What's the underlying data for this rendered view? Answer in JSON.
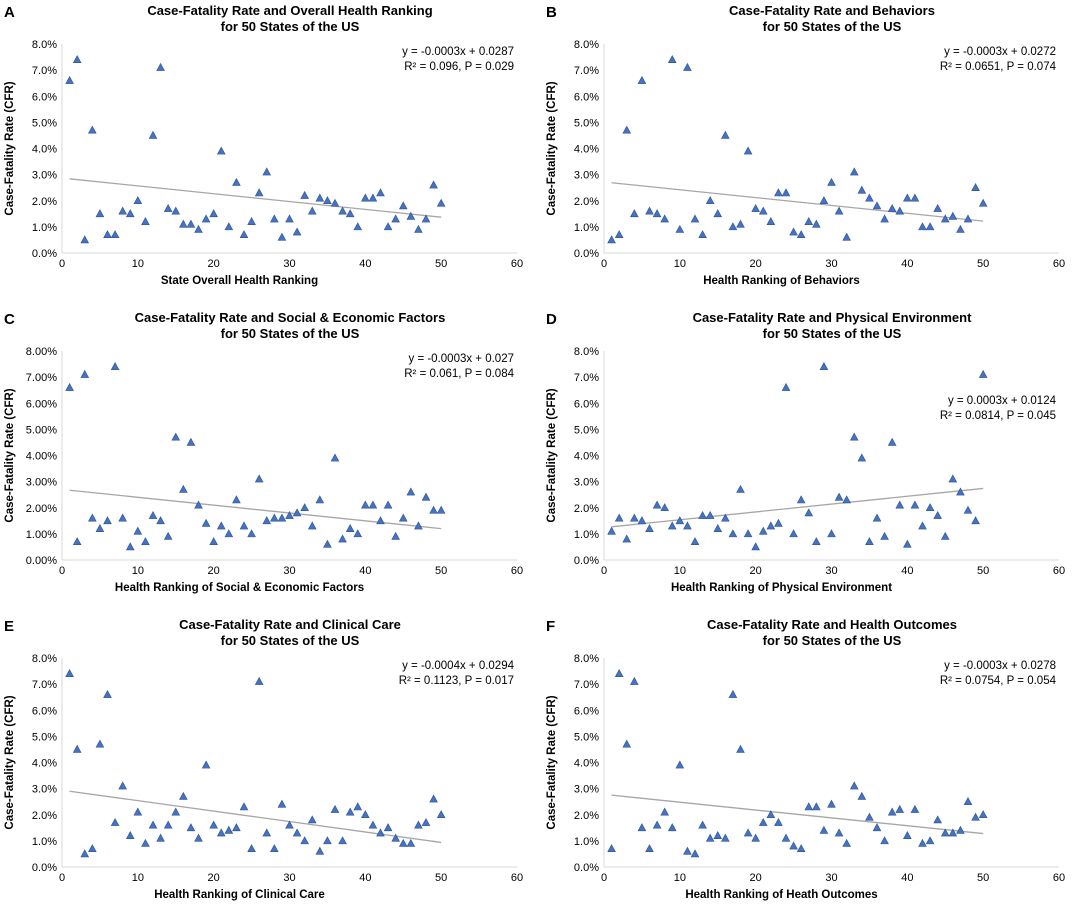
{
  "colors": {
    "marker": "#4472C4",
    "marker_edge": "#2F528F",
    "trendline": "#A6A6A6",
    "axis": "#D9D9D9",
    "text": "#000000"
  },
  "chart_data": [
    {
      "panel_letter": "A",
      "type": "scatter",
      "title": "Case-Fatality Rate and Overall Health Ranking",
      "subtitle": "for 50 States of the US",
      "xlabel": "State Overall Health Ranking",
      "ylabel": "Case-Fatality Rate (CFR)",
      "xlim": [
        0,
        60
      ],
      "xticks": [
        0,
        10,
        20,
        30,
        40,
        50,
        60
      ],
      "ylim": [
        0,
        0.08
      ],
      "ytick_labels": [
        "0.0%",
        "1.0%",
        "2.0%",
        "3.0%",
        "4.0%",
        "5.0%",
        "6.0%",
        "7.0%",
        "8.0%"
      ],
      "equation": "y = -0.0003x + 0.0287",
      "stats": "R² = 0.096, P = 0.029",
      "trendline": {
        "slope": -0.0003,
        "intercept": 0.0287,
        "x_range": [
          1,
          50
        ]
      },
      "x": [
        1,
        2,
        3,
        4,
        5,
        6,
        7,
        8,
        9,
        10,
        11,
        12,
        13,
        14,
        15,
        16,
        17,
        18,
        19,
        20,
        21,
        22,
        23,
        24,
        25,
        26,
        27,
        28,
        29,
        30,
        31,
        32,
        33,
        34,
        35,
        36,
        37,
        38,
        39,
        40,
        41,
        42,
        43,
        44,
        45,
        46,
        47,
        48,
        49,
        50
      ],
      "y": [
        0.066,
        0.074,
        0.005,
        0.047,
        0.015,
        0.007,
        0.007,
        0.016,
        0.015,
        0.02,
        0.012,
        0.045,
        0.071,
        0.017,
        0.016,
        0.011,
        0.011,
        0.009,
        0.013,
        0.015,
        0.039,
        0.01,
        0.027,
        0.007,
        0.012,
        0.023,
        0.031,
        0.013,
        0.006,
        0.013,
        0.008,
        0.022,
        0.016,
        0.021,
        0.02,
        0.019,
        0.016,
        0.015,
        0.01,
        0.021,
        0.021,
        0.023,
        0.01,
        0.013,
        0.018,
        0.014,
        0.009,
        0.013,
        0.026,
        0.019
      ]
    },
    {
      "panel_letter": "B",
      "type": "scatter",
      "title": "Case-Fatality Rate and Behaviors",
      "subtitle": "for 50 States of the US",
      "xlabel": "Health Ranking of Behaviors",
      "ylabel": "Case-Fatality Rate (CFR)",
      "xlim": [
        0,
        60
      ],
      "xticks": [
        0,
        10,
        20,
        30,
        40,
        50,
        60
      ],
      "ylim": [
        0,
        0.08
      ],
      "ytick_labels": [
        "0.0%",
        "1.0%",
        "2.0%",
        "3.0%",
        "4.0%",
        "5.0%",
        "6.0%",
        "7.0%",
        "8.0%"
      ],
      "equation": "y = -0.0003x + 0.0272",
      "stats": "R² = 0.0651, P = 0.074",
      "trendline": {
        "slope": -0.0003,
        "intercept": 0.0272,
        "x_range": [
          1,
          50
        ]
      },
      "x": [
        1,
        2,
        3,
        4,
        5,
        6,
        7,
        8,
        9,
        10,
        11,
        12,
        13,
        14,
        15,
        16,
        17,
        18,
        19,
        20,
        21,
        22,
        23,
        24,
        25,
        26,
        27,
        28,
        29,
        30,
        31,
        32,
        33,
        34,
        35,
        36,
        37,
        38,
        39,
        40,
        41,
        42,
        43,
        44,
        45,
        46,
        47,
        48,
        49,
        50
      ],
      "y": [
        0.005,
        0.007,
        0.047,
        0.015,
        0.066,
        0.016,
        0.015,
        0.013,
        0.074,
        0.009,
        0.071,
        0.013,
        0.007,
        0.02,
        0.015,
        0.045,
        0.01,
        0.011,
        0.039,
        0.017,
        0.016,
        0.012,
        0.023,
        0.023,
        0.008,
        0.007,
        0.012,
        0.011,
        0.02,
        0.027,
        0.016,
        0.006,
        0.031,
        0.024,
        0.021,
        0.018,
        0.013,
        0.017,
        0.016,
        0.021,
        0.021,
        0.01,
        0.01,
        0.017,
        0.013,
        0.014,
        0.009,
        0.013,
        0.025,
        0.019
      ]
    },
    {
      "panel_letter": "C",
      "type": "scatter",
      "title": "Case-Fatality Rate and Social & Economic Factors",
      "subtitle": "for 50 States of the US",
      "xlabel": "Health Ranking of Social & Economic Factors",
      "ylabel": "Case-Fatality Rate (CFR)",
      "xlim": [
        0,
        60
      ],
      "xticks": [
        0,
        10,
        20,
        30,
        40,
        50,
        60
      ],
      "ylim": [
        0,
        0.08
      ],
      "ytick_labels": [
        "0.00%",
        "1.00%",
        "2.00%",
        "3.00%",
        "4.00%",
        "5.00%",
        "6.00%",
        "7.00%",
        "8.00%"
      ],
      "equation": "y = -0.0003x + 0.027",
      "stats": "R² = 0.061, P = 0.084",
      "trendline": {
        "slope": -0.0003,
        "intercept": 0.027,
        "x_range": [
          1,
          50
        ]
      },
      "x": [
        1,
        2,
        3,
        4,
        5,
        6,
        7,
        8,
        9,
        10,
        11,
        12,
        13,
        14,
        15,
        16,
        17,
        18,
        19,
        20,
        21,
        22,
        23,
        24,
        25,
        26,
        27,
        28,
        29,
        30,
        31,
        32,
        33,
        34,
        35,
        36,
        37,
        38,
        39,
        40,
        41,
        42,
        43,
        44,
        45,
        46,
        47,
        48,
        49,
        50
      ],
      "y": [
        0.066,
        0.007,
        0.071,
        0.016,
        0.012,
        0.015,
        0.074,
        0.016,
        0.005,
        0.011,
        0.007,
        0.017,
        0.015,
        0.009,
        0.047,
        0.027,
        0.045,
        0.021,
        0.014,
        0.007,
        0.013,
        0.01,
        0.023,
        0.013,
        0.01,
        0.031,
        0.015,
        0.016,
        0.016,
        0.017,
        0.018,
        0.02,
        0.013,
        0.023,
        0.006,
        0.039,
        0.008,
        0.012,
        0.01,
        0.021,
        0.021,
        0.015,
        0.021,
        0.009,
        0.016,
        0.026,
        0.013,
        0.024,
        0.019,
        0.019
      ]
    },
    {
      "panel_letter": "D",
      "type": "scatter",
      "title": "Case-Fatality Rate and Physical Environment",
      "subtitle": "for 50 States of the US",
      "xlabel": "Health Ranking of Physical Environment",
      "ylabel": "Case-Fatality Rate (CFR)",
      "xlim": [
        0,
        60
      ],
      "xticks": [
        0,
        10,
        20,
        30,
        40,
        50,
        60
      ],
      "ylim": [
        0,
        0.08
      ],
      "ytick_labels": [
        "0.0%",
        "1.0%",
        "2.0%",
        "3.0%",
        "4.0%",
        "5.0%",
        "6.0%",
        "7.0%",
        "8.0%"
      ],
      "equation": "y = 0.0003x + 0.0124",
      "stats": "R² = 0.0814, P = 0.045",
      "trendline": {
        "slope": 0.0003,
        "intercept": 0.0124,
        "x_range": [
          1,
          50
        ]
      },
      "x": [
        1,
        2,
        3,
        4,
        5,
        6,
        7,
        8,
        9,
        10,
        11,
        12,
        13,
        14,
        15,
        16,
        17,
        18,
        19,
        20,
        21,
        22,
        23,
        24,
        25,
        26,
        27,
        28,
        29,
        30,
        31,
        32,
        33,
        34,
        35,
        36,
        37,
        38,
        39,
        40,
        41,
        42,
        43,
        44,
        45,
        46,
        47,
        48,
        49,
        50
      ],
      "y": [
        0.011,
        0.016,
        0.008,
        0.016,
        0.015,
        0.012,
        0.021,
        0.02,
        0.013,
        0.015,
        0.013,
        0.007,
        0.017,
        0.017,
        0.012,
        0.016,
        0.01,
        0.027,
        0.01,
        0.005,
        0.011,
        0.013,
        0.014,
        0.066,
        0.01,
        0.023,
        0.018,
        0.007,
        0.074,
        0.01,
        0.024,
        0.023,
        0.047,
        0.039,
        0.007,
        0.016,
        0.009,
        0.045,
        0.021,
        0.006,
        0.021,
        0.013,
        0.02,
        0.017,
        0.009,
        0.031,
        0.026,
        0.019,
        0.015,
        0.071
      ]
    },
    {
      "panel_letter": "E",
      "type": "scatter",
      "title": "Case-Fatality Rate and Clinical Care",
      "subtitle": "for 50 States of the US",
      "xlabel": "Health Ranking of Clinical Care",
      "ylabel": "Case-Fatality Rate (CFR)",
      "xlim": [
        0,
        60
      ],
      "xticks": [
        0,
        10,
        20,
        30,
        40,
        50,
        60
      ],
      "ylim": [
        0,
        0.08
      ],
      "ytick_labels": [
        "0.0%",
        "1.0%",
        "2.0%",
        "3.0%",
        "4.0%",
        "5.0%",
        "6.0%",
        "7.0%",
        "8.0%"
      ],
      "equation": "y = -0.0004x + 0.0294",
      "stats": "R² = 0.1123, P = 0.017",
      "trendline": {
        "slope": -0.0004,
        "intercept": 0.0294,
        "x_range": [
          1,
          50
        ]
      },
      "x": [
        1,
        2,
        3,
        4,
        5,
        6,
        7,
        8,
        9,
        10,
        11,
        12,
        13,
        14,
        15,
        16,
        17,
        18,
        19,
        20,
        21,
        22,
        23,
        24,
        25,
        26,
        27,
        28,
        29,
        30,
        31,
        32,
        33,
        34,
        35,
        36,
        37,
        38,
        39,
        40,
        41,
        42,
        43,
        44,
        45,
        46,
        47,
        48,
        49,
        50
      ],
      "y": [
        0.074,
        0.045,
        0.005,
        0.007,
        0.047,
        0.066,
        0.017,
        0.031,
        0.012,
        0.021,
        0.009,
        0.016,
        0.011,
        0.016,
        0.021,
        0.027,
        0.015,
        0.011,
        0.039,
        0.016,
        0.013,
        0.014,
        0.015,
        0.023,
        0.007,
        0.071,
        0.013,
        0.007,
        0.024,
        0.016,
        0.013,
        0.01,
        0.018,
        0.006,
        0.01,
        0.022,
        0.01,
        0.021,
        0.023,
        0.02,
        0.016,
        0.013,
        0.015,
        0.011,
        0.009,
        0.009,
        0.016,
        0.017,
        0.026,
        0.02
      ]
    },
    {
      "panel_letter": "F",
      "type": "scatter",
      "title": "Case-Fatality Rate and Health Outcomes",
      "subtitle": "for 50 States of the US",
      "xlabel": "Health Ranking of Heath Outcomes",
      "ylabel": "Case-Fatality Rate (CFR)",
      "xlim": [
        0,
        60
      ],
      "xticks": [
        0,
        10,
        20,
        30,
        40,
        50,
        60
      ],
      "ylim": [
        0,
        0.08
      ],
      "ytick_labels": [
        "0.0%",
        "1.0%",
        "2.0%",
        "3.0%",
        "4.0%",
        "5.0%",
        "6.0%",
        "7.0%",
        "8.0%"
      ],
      "equation": "y = -0.0003x + 0.0278",
      "stats": "R² = 0.0754, P = 0.054",
      "trendline": {
        "slope": -0.0003,
        "intercept": 0.0278,
        "x_range": [
          1,
          50
        ]
      },
      "x": [
        1,
        2,
        3,
        4,
        5,
        6,
        7,
        8,
        9,
        10,
        11,
        12,
        13,
        14,
        15,
        16,
        17,
        18,
        19,
        20,
        21,
        22,
        23,
        24,
        25,
        26,
        27,
        28,
        29,
        30,
        31,
        32,
        33,
        34,
        35,
        36,
        37,
        38,
        39,
        40,
        41,
        42,
        43,
        44,
        45,
        46,
        47,
        48,
        49,
        50
      ],
      "y": [
        0.007,
        0.074,
        0.047,
        0.071,
        0.015,
        0.007,
        0.016,
        0.021,
        0.015,
        0.039,
        0.006,
        0.005,
        0.016,
        0.011,
        0.012,
        0.011,
        0.066,
        0.045,
        0.013,
        0.011,
        0.017,
        0.02,
        0.017,
        0.011,
        0.008,
        0.007,
        0.023,
        0.023,
        0.014,
        0.024,
        0.013,
        0.009,
        0.031,
        0.027,
        0.019,
        0.015,
        0.01,
        0.021,
        0.022,
        0.012,
        0.022,
        0.009,
        0.01,
        0.018,
        0.013,
        0.013,
        0.014,
        0.025,
        0.019,
        0.02
      ]
    }
  ]
}
